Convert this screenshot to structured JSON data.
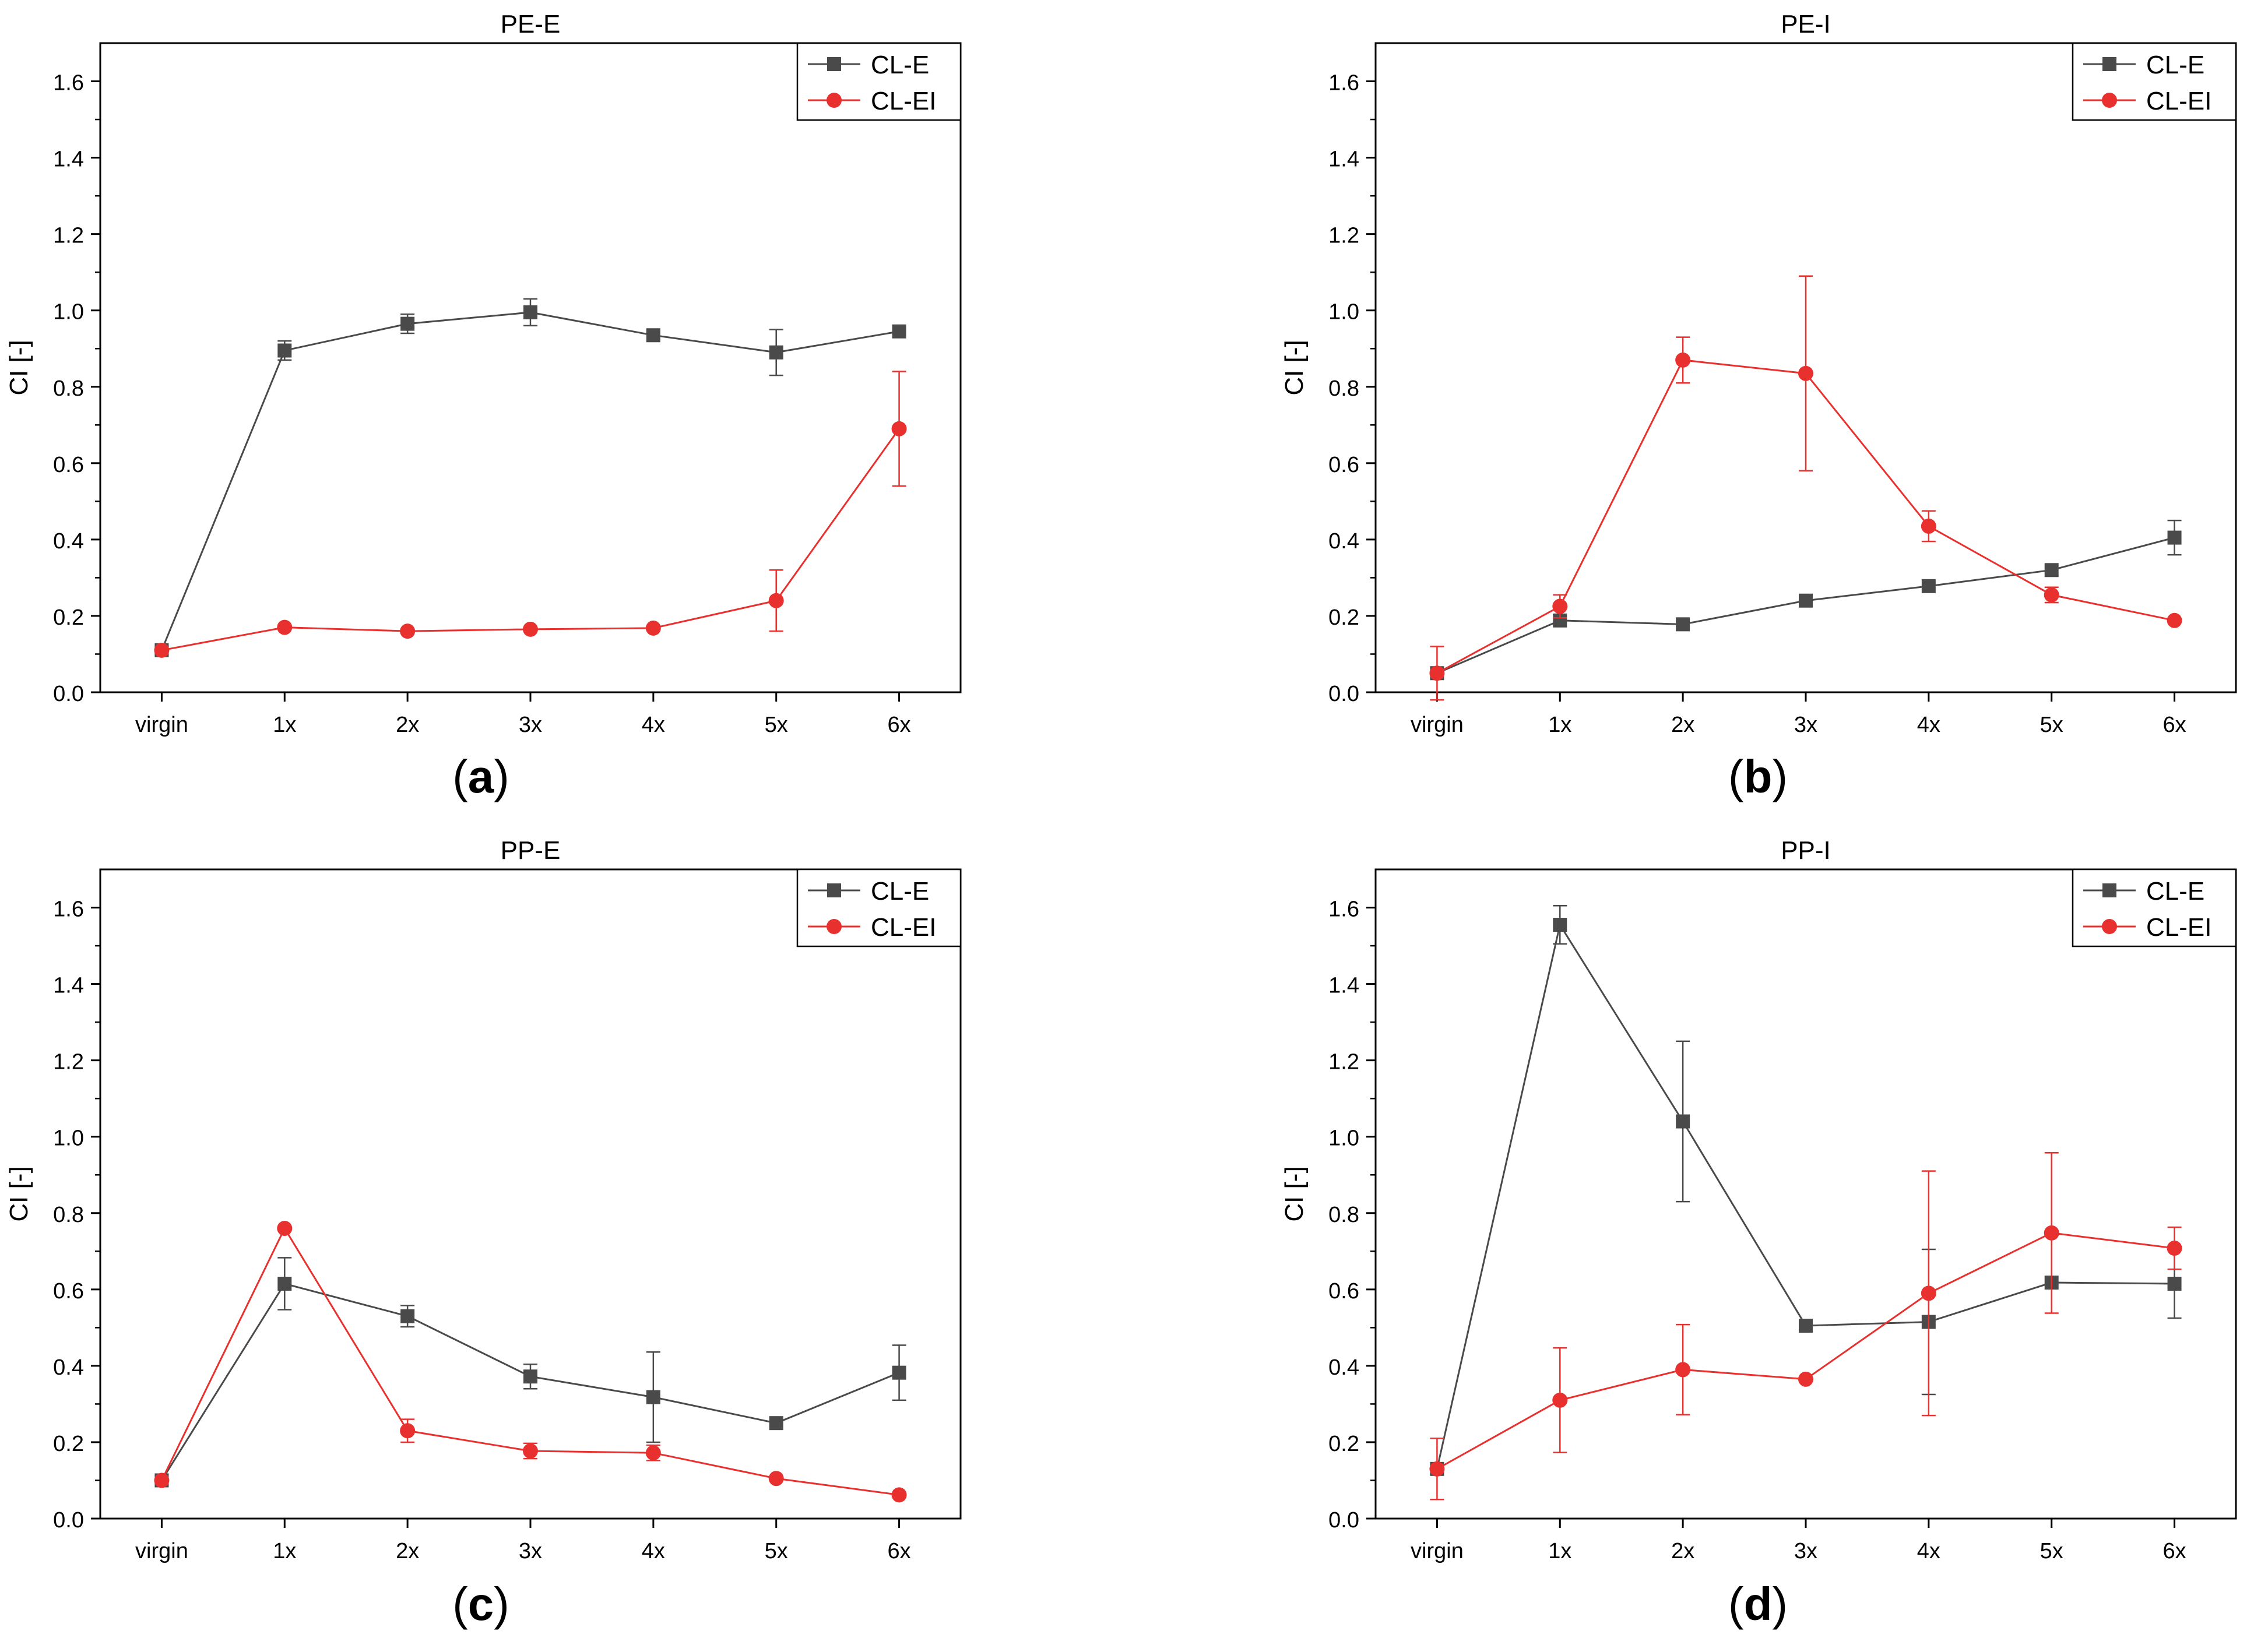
{
  "figure": {
    "colors": {
      "cl_e": "#4a4a4a",
      "cl_ei": "#e8302e",
      "axis": "#000000"
    }
  },
  "chart_data": [
    {
      "type": "line",
      "panel": "a",
      "caption": "(a)",
      "title": "PE-E",
      "xlabel": "",
      "ylabel": "CI [-]",
      "categories": [
        "virgin",
        "1x",
        "2x",
        "3x",
        "4x",
        "5x",
        "6x"
      ],
      "ylim": [
        0,
        1.7
      ],
      "yticks": [
        0.0,
        0.2,
        0.4,
        0.6,
        0.8,
        1.0,
        1.2,
        1.4,
        1.6
      ],
      "yticklabels": [
        "0.0",
        "0.2",
        "0.4",
        "0.6",
        "0.8",
        "1.0",
        "1.2",
        "1.4",
        "1.6"
      ],
      "legend_position": "top-right",
      "series": [
        {
          "name": "CL-E",
          "marker": "square",
          "color": "#4a4a4a",
          "values": [
            0.11,
            0.895,
            0.965,
            0.995,
            0.935,
            0.89,
            0.945
          ],
          "errors": [
            0.01,
            0.025,
            0.025,
            0.035,
            0.0,
            0.06,
            0.0
          ]
        },
        {
          "name": "CL-EI",
          "marker": "circle",
          "color": "#e8302e",
          "values": [
            0.11,
            0.17,
            0.16,
            0.165,
            0.168,
            0.24,
            0.69
          ],
          "errors": [
            0.0,
            0.0,
            0.0,
            0.0,
            0.0,
            0.08,
            0.15
          ]
        }
      ]
    },
    {
      "type": "line",
      "panel": "b",
      "caption": "(b)",
      "title": "PE-I",
      "xlabel": "",
      "ylabel": "CI [-]",
      "categories": [
        "virgin",
        "1x",
        "2x",
        "3x",
        "4x",
        "5x",
        "6x"
      ],
      "ylim": [
        0,
        1.7
      ],
      "yticks": [
        0.0,
        0.2,
        0.4,
        0.6,
        0.8,
        1.0,
        1.2,
        1.4,
        1.6
      ],
      "yticklabels": [
        "0.0",
        "0.2",
        "0.4",
        "0.6",
        "0.8",
        "1.0",
        "1.2",
        "1.4",
        "1.6"
      ],
      "legend_position": "top-right",
      "series": [
        {
          "name": "CL-E",
          "marker": "square",
          "color": "#4a4a4a",
          "values": [
            0.05,
            0.188,
            0.178,
            0.24,
            0.278,
            0.32,
            0.405
          ],
          "errors": [
            0.0,
            0.0,
            0.0,
            0.0,
            0.0,
            0.0,
            0.045
          ]
        },
        {
          "name": "CL-EI",
          "marker": "circle",
          "color": "#e8302e",
          "values": [
            0.05,
            0.225,
            0.87,
            0.835,
            0.435,
            0.255,
            0.188
          ],
          "errors": [
            0.07,
            0.03,
            0.06,
            0.255,
            0.04,
            0.02,
            0.0
          ]
        }
      ]
    },
    {
      "type": "line",
      "panel": "c",
      "caption": "(c)",
      "title": "PP-E",
      "xlabel": "",
      "ylabel": "CI [-]",
      "categories": [
        "virgin",
        "1x",
        "2x",
        "3x",
        "4x",
        "5x",
        "6x"
      ],
      "ylim": [
        0,
        1.7
      ],
      "yticks": [
        0.0,
        0.2,
        0.4,
        0.6,
        0.8,
        1.0,
        1.2,
        1.4,
        1.6
      ],
      "yticklabels": [
        "0.0",
        "0.2",
        "0.4",
        "0.6",
        "0.8",
        "1.0",
        "1.2",
        "1.4",
        "1.6"
      ],
      "legend_position": "top-right",
      "series": [
        {
          "name": "CL-E",
          "marker": "square",
          "color": "#4a4a4a",
          "values": [
            0.1,
            0.615,
            0.53,
            0.372,
            0.318,
            0.25,
            0.382
          ],
          "errors": [
            0.0,
            0.068,
            0.028,
            0.032,
            0.118,
            0.0,
            0.072
          ]
        },
        {
          "name": "CL-EI",
          "marker": "circle",
          "color": "#e8302e",
          "values": [
            0.1,
            0.76,
            0.23,
            0.177,
            0.172,
            0.105,
            0.062
          ],
          "errors": [
            0.0,
            0.0,
            0.03,
            0.02,
            0.02,
            0.0,
            0.0
          ]
        }
      ]
    },
    {
      "type": "line",
      "panel": "d",
      "caption": "(d)",
      "title": "PP-I",
      "xlabel": "",
      "ylabel": "CI [-]",
      "categories": [
        "virgin",
        "1x",
        "2x",
        "3x",
        "4x",
        "5x",
        "6x"
      ],
      "ylim": [
        0,
        1.7
      ],
      "yticks": [
        0.0,
        0.2,
        0.4,
        0.6,
        0.8,
        1.0,
        1.2,
        1.4,
        1.6
      ],
      "yticklabels": [
        "0.0",
        "0.2",
        "0.4",
        "0.6",
        "0.8",
        "1.0",
        "1.2",
        "1.4",
        "1.6"
      ],
      "legend_position": "top-right",
      "series": [
        {
          "name": "CL-E",
          "marker": "square",
          "color": "#4a4a4a",
          "values": [
            0.13,
            1.555,
            1.04,
            0.505,
            0.515,
            0.618,
            0.615
          ],
          "errors": [
            0.0,
            0.05,
            0.21,
            0.0,
            0.19,
            0.0,
            0.09
          ]
        },
        {
          "name": "CL-EI",
          "marker": "circle",
          "color": "#e8302e",
          "values": [
            0.13,
            0.31,
            0.39,
            0.365,
            0.59,
            0.748,
            0.708
          ],
          "errors": [
            0.08,
            0.137,
            0.118,
            0.0,
            0.32,
            0.21,
            0.055
          ]
        }
      ]
    }
  ]
}
